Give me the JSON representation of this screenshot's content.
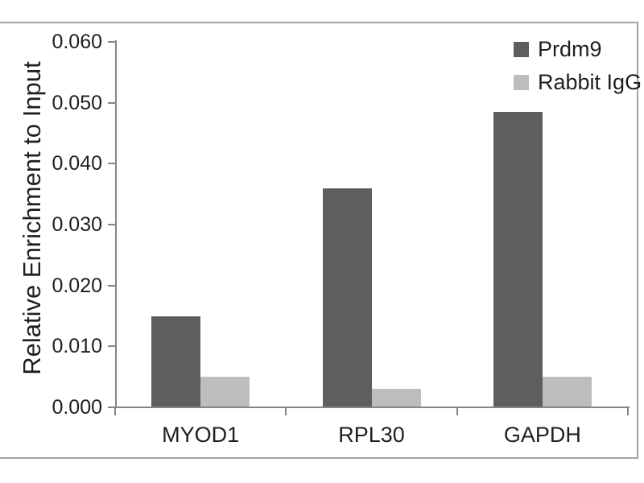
{
  "figure": {
    "background": "#ffffff",
    "frame_color": "#a3a3a3"
  },
  "chart_data": {
    "type": "bar",
    "title": "",
    "xlabel": "",
    "ylabel": "Relative Enrichment to Input",
    "categories": [
      "MYOD1",
      "RPL30",
      "GAPDH"
    ],
    "series": [
      {
        "name": "Prdm9",
        "color": "#5e5e5e",
        "values": [
          0.015,
          0.036,
          0.0485
        ]
      },
      {
        "name": "Rabbit IgG",
        "color": "#bdbdbd",
        "values": [
          0.005,
          0.003,
          0.005
        ]
      }
    ],
    "ylim": [
      0,
      0.06
    ],
    "y_ticks": [
      "0.000",
      "0.010",
      "0.020",
      "0.030",
      "0.040",
      "0.050",
      "0.060"
    ],
    "grid": false,
    "legend_position": "top-right",
    "axis_color": "#858585",
    "text_color": "#1f1f1f"
  }
}
